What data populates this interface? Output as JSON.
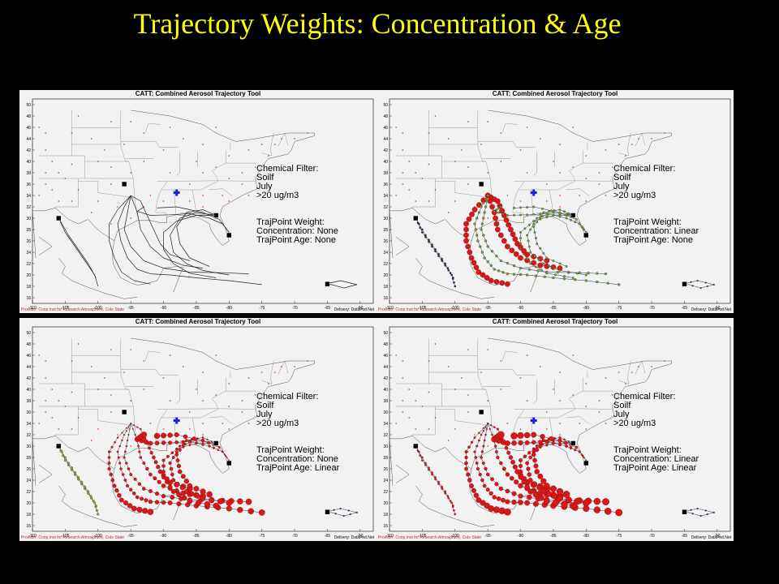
{
  "slide": {
    "title": "Trajectory Weights: Concentration & Age"
  },
  "panel_common": {
    "header": "CATT: Combined Aerosol Trajectory Tool",
    "provider": "Provider: Coop Inst for Research Atmosphere, Colo State",
    "delivery": "Delivery: DataFed.Net",
    "lat_ticks": [
      "50",
      "48",
      "46",
      "44",
      "42",
      "40",
      "38",
      "36",
      "34",
      "32",
      "30",
      "28",
      "26",
      "24",
      "22",
      "20",
      "18",
      "16"
    ],
    "lon_ticks": [
      "-110",
      "-105",
      "-100",
      "-95",
      "-90",
      "-85",
      "-80",
      "-75",
      "-70",
      "-65",
      "-60"
    ],
    "filter_heading": "Chemical Filter:",
    "filter_species": "Soilf",
    "filter_month": "July",
    "filter_threshold": ">20 ug/m3",
    "weight_heading": "TrajPoint Weight:"
  },
  "panels": [
    {
      "concentration": "Concentration: None",
      "age": "TrajPoint Age: None"
    },
    {
      "concentration": "Concentration: Linear",
      "age": "TrajPoint Age: None"
    },
    {
      "concentration": "Concentration: None",
      "age": "TrajPoint Age: Linear"
    },
    {
      "concentration": "Concentration: Linear",
      "age": "TrajPoint Age: Linear"
    }
  ],
  "colors": {
    "title": "#ffff00",
    "map_background": "#f2f2f2",
    "station_dot": "#e02020",
    "receptor_marker": "#2020e0",
    "traj_black": "#222222",
    "traj_red": "#d81818",
    "traj_green": "#50b040",
    "traj_navy": "#203060"
  }
}
